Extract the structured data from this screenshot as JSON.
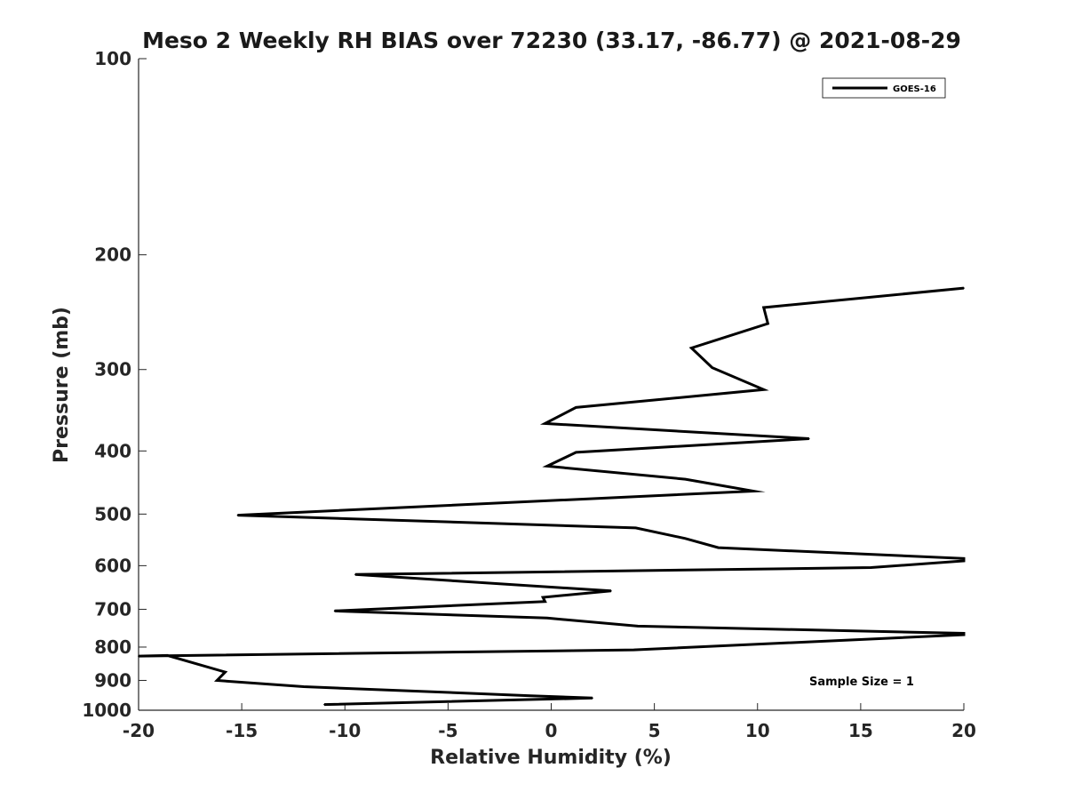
{
  "chart_data": {
    "type": "line",
    "title": "Meso 2 Weekly RH BIAS over 72230 (33.17, -86.77) @ 2021-08-29",
    "xlabel": "Relative Humidity (%)",
    "ylabel": "Pressure (mb)",
    "xlim": [
      -20,
      20
    ],
    "ylim": [
      100,
      1000
    ],
    "y_scale": "log",
    "y_reversed": true,
    "grid": false,
    "legend_position": "top-right",
    "x_ticks": [
      -20,
      -15,
      -10,
      -5,
      0,
      5,
      10,
      15,
      20
    ],
    "x_tick_labels": [
      "-20",
      "-15",
      "-10",
      "-5",
      "0",
      "5",
      "10",
      "15",
      "20"
    ],
    "y_ticks": [
      100,
      200,
      300,
      400,
      500,
      600,
      700,
      800,
      900,
      1000
    ],
    "y_tick_labels": [
      "100",
      "200",
      "300",
      "400",
      "500",
      "600",
      "700",
      "800",
      "900",
      "1000"
    ],
    "series": [
      {
        "name": "GOES-16",
        "color": "#000000",
        "x": [
          20,
          10.3,
          10.5,
          6.8,
          7.8,
          10.3,
          1.2,
          -0.3,
          12.5,
          1.2,
          -0.2,
          6.5,
          9.8,
          -15.2,
          4.1,
          6.5,
          8.1,
          20,
          20,
          15.5,
          -9.5,
          2.9,
          -0.4,
          -0.3,
          -10.5,
          -0.2,
          4.2,
          20,
          20,
          4,
          -20,
          -18.6,
          -15.8,
          -16.2,
          -12.0,
          -1.0,
          2.0,
          -11.0
        ],
        "y": [
          225,
          241,
          255,
          278,
          298,
          322,
          343,
          363,
          383,
          402,
          422,
          442,
          461,
          502,
          525,
          545,
          563,
          585,
          590,
          604,
          619,
          656,
          671,
          681,
          704,
          722,
          743,
          762,
          766,
          808,
          826,
          824,
          874,
          900,
          920,
          950,
          958,
          980
        ]
      }
    ],
    "annotations": [
      "Sample Size = 1"
    ]
  }
}
